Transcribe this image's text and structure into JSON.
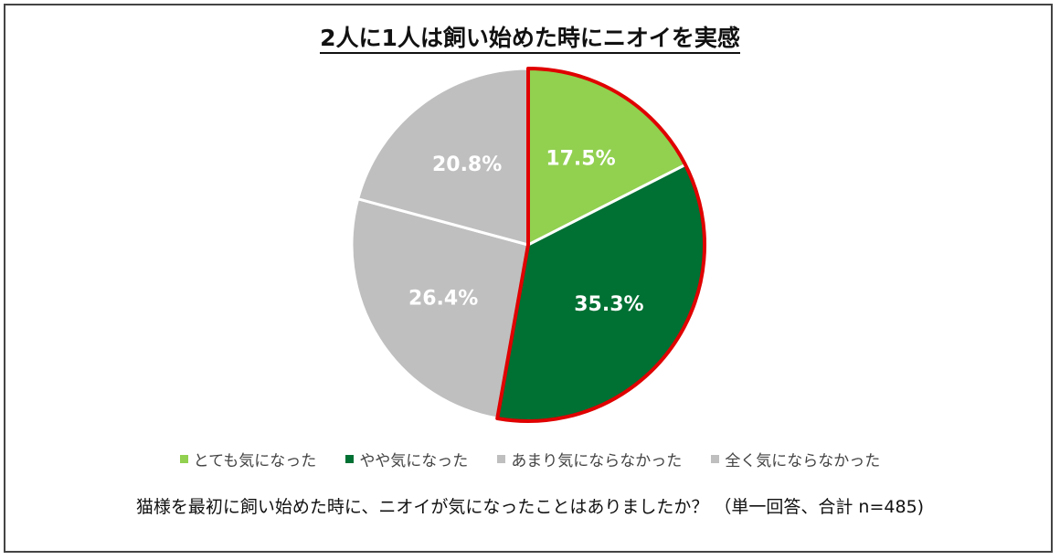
{
  "title": "2人に1人は飼い始めた時にニオイを実感",
  "footnote": "猫様を最初に飼い始めた時に、ニオイが気になったことはありましたか？ （単一回答、合計 n=485)",
  "chart_data": {
    "type": "pie",
    "categories": [
      "とても気になった",
      "やや気になった",
      "あまり気にならなかった",
      "全く気にならなかった"
    ],
    "values": [
      17.5,
      35.3,
      26.4,
      20.8
    ],
    "labels": [
      "17.5%",
      "35.3%",
      "26.4%",
      "20.8%"
    ],
    "colors": [
      "#92d050",
      "#007033",
      "#bfbfbf",
      "#bfbfbf"
    ],
    "legend_colors": [
      "#92d050",
      "#007033",
      "#bfbfbf",
      "#bfbfbf"
    ],
    "highlight_color": "#e00000",
    "highlighted_slices": [
      0,
      1
    ],
    "start": "12 o'clock",
    "direction": "clockwise",
    "legend_position": "bottom"
  }
}
